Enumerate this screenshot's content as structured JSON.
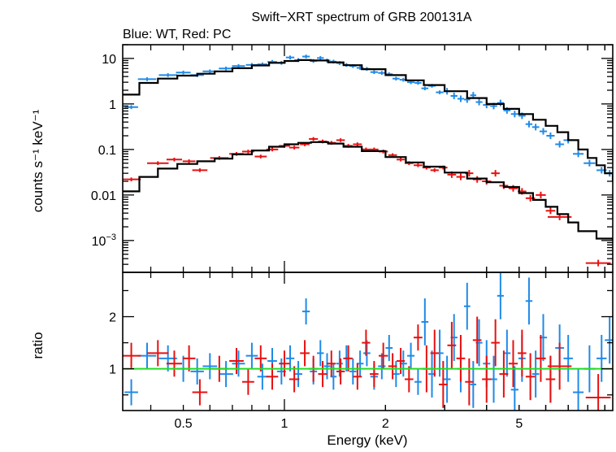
{
  "chart_data": [
    {
      "type": "scatter",
      "title": "Swift−XRT spectrum of GRB 200131A",
      "subtitle": "Blue: WT, Red: PC",
      "xlabel": "Energy (keV)",
      "ylabel": "counts s⁻¹ keV⁻¹",
      "xscale": "log",
      "yscale": "log",
      "xlim": [
        0.33,
        9.5
      ],
      "ylim": [
        0.0002,
        20
      ],
      "yticks": [
        {
          "v": 10,
          "t": "10"
        },
        {
          "v": 1,
          "t": "1"
        },
        {
          "v": 0.1,
          "t": "0.1"
        },
        {
          "v": 0.01,
          "t": "0.01"
        }
      ],
      "ytick_exp": {
        "v": 0.001,
        "base": "10",
        "exp": "−3"
      },
      "series": [
        {
          "name": "WT",
          "color": "#1f8ae8",
          "points": [
            [
              0.35,
              0.85
            ],
            [
              0.39,
              3.5
            ],
            [
              0.45,
              4.3
            ],
            [
              0.5,
              4.9
            ],
            [
              0.55,
              4.3
            ],
            [
              0.6,
              5.2
            ],
            [
              0.67,
              6.0
            ],
            [
              0.73,
              6.8
            ],
            [
              0.8,
              7.2
            ],
            [
              0.86,
              7.4
            ],
            [
              0.92,
              8.4
            ],
            [
              0.98,
              8.0
            ],
            [
              1.04,
              10.5
            ],
            [
              1.1,
              9.2
            ],
            [
              1.16,
              11.0
            ],
            [
              1.22,
              8.8
            ],
            [
              1.28,
              10.2
            ],
            [
              1.34,
              9.0
            ],
            [
              1.4,
              8.5
            ],
            [
              1.46,
              7.9
            ],
            [
              1.53,
              7.2
            ],
            [
              1.6,
              6.8
            ],
            [
              1.68,
              6.2
            ],
            [
              1.76,
              5.9
            ],
            [
              1.85,
              5.0
            ],
            [
              1.95,
              4.8
            ],
            [
              2.05,
              4.5
            ],
            [
              2.15,
              3.6
            ],
            [
              2.26,
              3.4
            ],
            [
              2.38,
              3.0
            ],
            [
              2.5,
              2.9
            ],
            [
              2.62,
              2.2
            ],
            [
              2.75,
              2.5
            ],
            [
              2.9,
              1.8
            ],
            [
              3.05,
              1.9
            ],
            [
              3.2,
              1.5
            ],
            [
              3.35,
              1.3
            ],
            [
              3.5,
              1.25
            ],
            [
              3.65,
              1.55
            ],
            [
              3.8,
              1.1
            ],
            [
              4.0,
              0.95
            ],
            [
              4.2,
              0.9
            ],
            [
              4.4,
              1.05
            ],
            [
              4.6,
              0.72
            ],
            [
              4.85,
              0.6
            ],
            [
              5.1,
              0.55
            ],
            [
              5.35,
              0.36
            ],
            [
              5.6,
              0.31
            ],
            [
              5.9,
              0.25
            ],
            [
              6.2,
              0.2
            ],
            [
              6.6,
              0.13
            ],
            [
              7.0,
              0.16
            ],
            [
              7.5,
              0.08
            ],
            [
              8.1,
              0.05
            ],
            [
              8.8,
              0.035
            ],
            [
              9.3,
              0.03
            ]
          ]
        },
        {
          "name": "PC",
          "color": "#e81010",
          "points": [
            [
              0.35,
              0.022
            ],
            [
              0.42,
              0.05
            ],
            [
              0.47,
              0.06
            ],
            [
              0.52,
              0.055
            ],
            [
              0.56,
              0.035
            ],
            [
              0.64,
              0.065
            ],
            [
              0.72,
              0.08
            ],
            [
              0.78,
              0.09
            ],
            [
              0.85,
              0.07
            ],
            [
              0.92,
              0.1
            ],
            [
              1.0,
              0.12
            ],
            [
              1.07,
              0.11
            ],
            [
              1.15,
              0.13
            ],
            [
              1.22,
              0.17
            ],
            [
              1.3,
              0.15
            ],
            [
              1.38,
              0.14
            ],
            [
              1.47,
              0.16
            ],
            [
              1.55,
              0.12
            ],
            [
              1.65,
              0.13
            ],
            [
              1.75,
              0.1
            ],
            [
              1.85,
              0.1
            ],
            [
              1.97,
              0.09
            ],
            [
              2.1,
              0.075
            ],
            [
              2.22,
              0.06
            ],
            [
              2.35,
              0.05
            ],
            [
              2.5,
              0.045
            ],
            [
              2.65,
              0.04
            ],
            [
              2.8,
              0.035
            ],
            [
              2.97,
              0.04
            ],
            [
              3.15,
              0.028
            ],
            [
              3.35,
              0.025
            ],
            [
              3.55,
              0.03
            ],
            [
              3.75,
              0.022
            ],
            [
              4.0,
              0.02
            ],
            [
              4.25,
              0.03
            ],
            [
              4.5,
              0.016
            ],
            [
              4.8,
              0.014
            ],
            [
              5.1,
              0.012
            ],
            [
              5.4,
              0.0085
            ],
            [
              5.8,
              0.01
            ],
            [
              6.2,
              0.0045
            ],
            [
              6.6,
              0.0033
            ],
            [
              8.6,
              0.00032
            ]
          ]
        }
      ],
      "model_curves": [
        {
          "name": "WT model",
          "points": [
            [
              0.33,
              1.6
            ],
            [
              0.37,
              2.9
            ],
            [
              0.42,
              3.6
            ],
            [
              0.48,
              4.2
            ],
            [
              0.55,
              4.6
            ],
            [
              0.62,
              5.2
            ],
            [
              0.7,
              6.1
            ],
            [
              0.8,
              7.0
            ],
            [
              0.9,
              8.0
            ],
            [
              1.0,
              8.8
            ],
            [
              1.1,
              9.2
            ],
            [
              1.2,
              9.0
            ],
            [
              1.35,
              8.2
            ],
            [
              1.5,
              7.1
            ],
            [
              1.7,
              5.8
            ],
            [
              2.0,
              4.3
            ],
            [
              2.3,
              3.3
            ],
            [
              2.6,
              2.6
            ],
            [
              3.0,
              1.9
            ],
            [
              3.5,
              1.35
            ],
            [
              4.0,
              1.0
            ],
            [
              4.5,
              0.78
            ],
            [
              5.0,
              0.6
            ],
            [
              5.5,
              0.45
            ],
            [
              6.0,
              0.33
            ],
            [
              6.5,
              0.24
            ],
            [
              7.0,
              0.16
            ],
            [
              7.5,
              0.1
            ],
            [
              8.0,
              0.065
            ],
            [
              8.5,
              0.045
            ],
            [
              9.0,
              0.03
            ],
            [
              9.5,
              0.02
            ]
          ]
        },
        {
          "name": "PC model",
          "points": [
            [
              0.33,
              0.012
            ],
            [
              0.37,
              0.025
            ],
            [
              0.42,
              0.038
            ],
            [
              0.48,
              0.048
            ],
            [
              0.55,
              0.055
            ],
            [
              0.62,
              0.063
            ],
            [
              0.7,
              0.078
            ],
            [
              0.8,
              0.095
            ],
            [
              0.9,
              0.115
            ],
            [
              1.0,
              0.13
            ],
            [
              1.1,
              0.14
            ],
            [
              1.2,
              0.145
            ],
            [
              1.35,
              0.135
            ],
            [
              1.5,
              0.115
            ],
            [
              1.7,
              0.092
            ],
            [
              2.0,
              0.068
            ],
            [
              2.3,
              0.052
            ],
            [
              2.6,
              0.042
            ],
            [
              3.0,
              0.031
            ],
            [
              3.5,
              0.023
            ],
            [
              4.0,
              0.019
            ],
            [
              4.5,
              0.015
            ],
            [
              5.0,
              0.011
            ],
            [
              5.5,
              0.0078
            ],
            [
              6.0,
              0.0055
            ],
            [
              6.5,
              0.0038
            ],
            [
              7.0,
              0.0025
            ],
            [
              7.5,
              0.0016
            ],
            [
              8.5,
              0.0011
            ],
            [
              9.5,
              0.001
            ]
          ]
        }
      ]
    },
    {
      "type": "scatter",
      "xlabel": "Energy (keV)",
      "ylabel": "ratio",
      "xscale": "log",
      "xlim": [
        0.33,
        9.5
      ],
      "ylim": [
        0.2,
        2.85
      ],
      "yticks": [
        {
          "v": 1,
          "t": "1"
        },
        {
          "v": 2,
          "t": "2"
        }
      ],
      "xticks": [
        {
          "v": 0.5,
          "t": "0.5"
        },
        {
          "v": 1,
          "t": "1"
        },
        {
          "v": 2,
          "t": "2"
        },
        {
          "v": 5,
          "t": "5"
        }
      ],
      "reference_line": {
        "y": 1,
        "color": "#22dd22"
      },
      "series": [
        {
          "name": "WT",
          "color": "#1f8ae8",
          "points": [
            [
              0.35,
              0.55
            ],
            [
              0.39,
              1.25
            ],
            [
              0.45,
              1.2
            ],
            [
              0.5,
              1.0
            ],
            [
              0.55,
              0.95
            ],
            [
              0.6,
              1.05
            ],
            [
              0.67,
              0.9
            ],
            [
              0.73,
              1.1
            ],
            [
              0.8,
              1.25
            ],
            [
              0.86,
              0.85
            ],
            [
              0.92,
              1.15
            ],
            [
              0.98,
              0.95
            ],
            [
              1.04,
              1.2
            ],
            [
              1.1,
              0.9
            ],
            [
              1.16,
              2.1
            ],
            [
              1.22,
              0.95
            ],
            [
              1.28,
              1.3
            ],
            [
              1.34,
              1.05
            ],
            [
              1.4,
              0.85
            ],
            [
              1.46,
              1.1
            ],
            [
              1.53,
              1.2
            ],
            [
              1.6,
              0.95
            ],
            [
              1.68,
              1.1
            ],
            [
              1.76,
              1.3
            ],
            [
              1.85,
              0.85
            ],
            [
              1.95,
              1.05
            ],
            [
              2.05,
              1.4
            ],
            [
              2.15,
              0.9
            ],
            [
              2.26,
              1.1
            ],
            [
              2.38,
              1.25
            ],
            [
              2.5,
              0.75
            ],
            [
              2.62,
              1.9
            ],
            [
              2.75,
              0.9
            ],
            [
              2.9,
              1.3
            ],
            [
              3.05,
              0.8
            ],
            [
              3.2,
              1.6
            ],
            [
              3.35,
              1.0
            ],
            [
              3.5,
              2.2
            ],
            [
              3.65,
              0.7
            ],
            [
              3.8,
              1.5
            ],
            [
              4.0,
              1.1
            ],
            [
              4.2,
              0.8
            ],
            [
              4.4,
              2.4
            ],
            [
              4.6,
              1.3
            ],
            [
              4.85,
              0.6
            ],
            [
              5.1,
              1.2
            ],
            [
              5.35,
              2.3
            ],
            [
              5.6,
              0.9
            ],
            [
              5.9,
              1.6
            ],
            [
              6.2,
              0.8
            ],
            [
              6.6,
              1.4
            ],
            [
              7.0,
              1.2
            ],
            [
              7.5,
              0.55
            ],
            [
              8.1,
              1.0
            ],
            [
              8.8,
              1.2
            ],
            [
              9.3,
              1.55
            ]
          ]
        },
        {
          "name": "PC",
          "color": "#e81010",
          "points": [
            [
              0.35,
              1.25
            ],
            [
              0.42,
              1.3
            ],
            [
              0.47,
              1.1
            ],
            [
              0.52,
              1.2
            ],
            [
              0.56,
              0.55
            ],
            [
              0.64,
              1.0
            ],
            [
              0.72,
              1.15
            ],
            [
              0.78,
              0.75
            ],
            [
              0.85,
              1.2
            ],
            [
              0.92,
              0.85
            ],
            [
              1.0,
              1.1
            ],
            [
              1.07,
              0.8
            ],
            [
              1.15,
              1.3
            ],
            [
              1.22,
              1.0
            ],
            [
              1.3,
              0.9
            ],
            [
              1.38,
              1.1
            ],
            [
              1.47,
              0.95
            ],
            [
              1.55,
              1.2
            ],
            [
              1.65,
              0.85
            ],
            [
              1.75,
              1.5
            ],
            [
              1.85,
              0.9
            ],
            [
              1.97,
              1.25
            ],
            [
              2.1,
              1.05
            ],
            [
              2.22,
              1.15
            ],
            [
              2.35,
              0.8
            ],
            [
              2.5,
              1.6
            ],
            [
              2.65,
              1.0
            ],
            [
              2.8,
              1.3
            ],
            [
              2.97,
              0.7
            ],
            [
              3.15,
              1.45
            ],
            [
              3.35,
              1.2
            ],
            [
              3.55,
              0.75
            ],
            [
              3.75,
              1.55
            ],
            [
              4.0,
              0.8
            ],
            [
              4.25,
              1.5
            ],
            [
              4.5,
              0.9
            ],
            [
              4.8,
              1.1
            ],
            [
              5.1,
              1.3
            ],
            [
              5.4,
              0.85
            ],
            [
              5.8,
              1.2
            ],
            [
              6.2,
              0.8
            ],
            [
              6.6,
              1.05
            ],
            [
              8.6,
              0.45
            ]
          ]
        }
      ]
    }
  ]
}
